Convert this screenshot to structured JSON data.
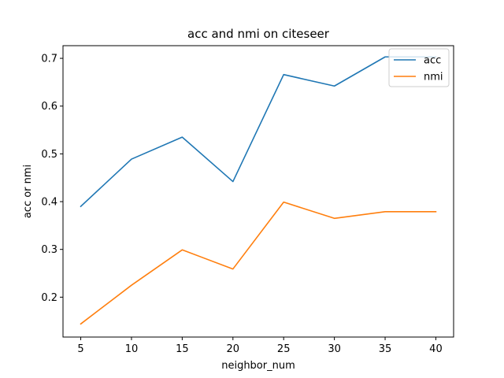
{
  "chart_data": {
    "type": "line",
    "title": "acc and nmi on citeseer",
    "xlabel": "neighbor_num",
    "ylabel": "acc or nmi",
    "x": [
      5,
      10,
      15,
      20,
      25,
      30,
      35,
      40
    ],
    "xticks": [
      "5",
      "10",
      "15",
      "20",
      "25",
      "30",
      "35",
      "40"
    ],
    "yticks": [
      "0.2",
      "0.3",
      "0.4",
      "0.5",
      "0.6",
      "0.7"
    ],
    "xlim": [
      3.25,
      41.75
    ],
    "ylim": [
      0.1165,
      0.7265
    ],
    "grid": false,
    "legend_position": "top-right",
    "series": [
      {
        "name": "acc",
        "color": "#1f77b4",
        "values": [
          0.39,
          0.489,
          0.535,
          0.442,
          0.666,
          0.642,
          0.703,
          0.703
        ]
      },
      {
        "name": "nmi",
        "color": "#ff7f0e",
        "values": [
          0.144,
          0.225,
          0.299,
          0.259,
          0.399,
          0.365,
          0.379,
          0.379
        ]
      }
    ]
  }
}
